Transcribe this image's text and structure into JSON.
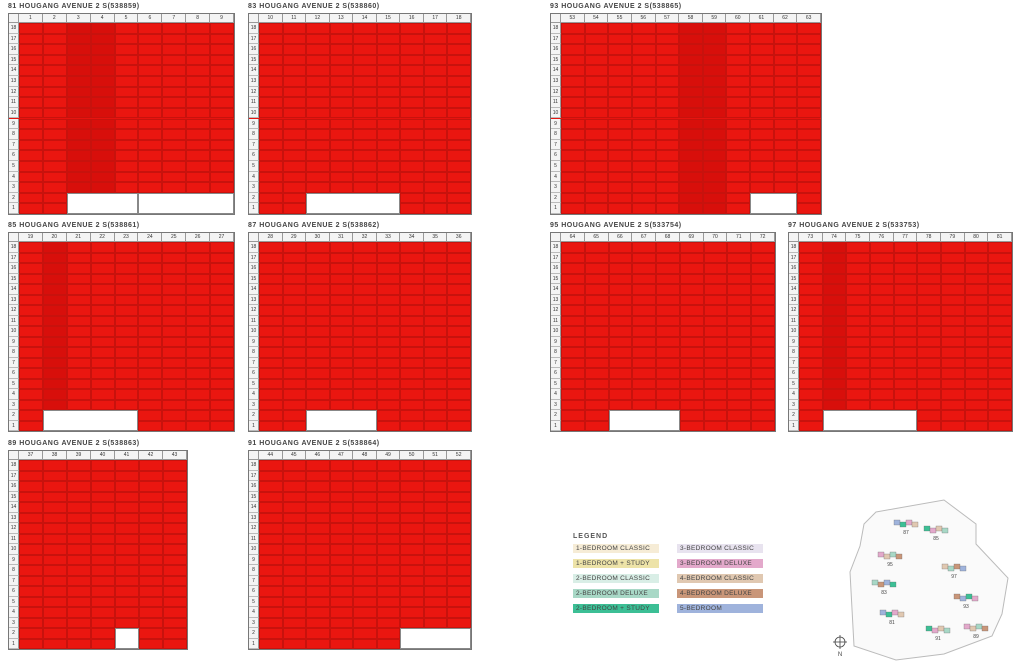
{
  "blocks": [
    {
      "title": "81 HOUGANG AVENUE 2 S(538859)",
      "units": [
        "1",
        "2",
        "3",
        "4",
        "5",
        "6",
        "7",
        "8",
        "9"
      ]
    },
    {
      "title": "83 HOUGANG AVENUE 2 S(538860)",
      "units": [
        "10",
        "11",
        "12",
        "13",
        "14",
        "15",
        "16",
        "17",
        "18"
      ]
    },
    {
      "title": "93 HOUGANG AVENUE 2 S(538865)",
      "units": [
        "53",
        "54",
        "55",
        "56",
        "57",
        "58",
        "59",
        "60",
        "61",
        "62",
        "63"
      ]
    },
    {
      "title": "85 HOUGANG AVENUE 2 S(538861)",
      "units": [
        "19",
        "20",
        "21",
        "22",
        "23",
        "24",
        "25",
        "26",
        "27"
      ]
    },
    {
      "title": "87 HOUGANG AVENUE 2 S(538862)",
      "units": [
        "28",
        "29",
        "30",
        "31",
        "32",
        "33",
        "34",
        "35",
        "36"
      ]
    },
    {
      "title": "95 HOUGANG AVENUE 2 S(533754)",
      "units": [
        "64",
        "65",
        "66",
        "67",
        "68",
        "69",
        "70",
        "71",
        "72"
      ]
    },
    {
      "title": "97 HOUGANG AVENUE 2 S(533753)",
      "units": [
        "73",
        "74",
        "75",
        "76",
        "77",
        "78",
        "79",
        "80",
        "81"
      ]
    },
    {
      "title": "89 HOUGANG AVENUE 2 S(538863)",
      "units": [
        "37",
        "38",
        "39",
        "40",
        "41",
        "42",
        "43"
      ]
    },
    {
      "title": "91 HOUGANG AVENUE 2 S(538864)",
      "units": [
        "44",
        "45",
        "46",
        "47",
        "48",
        "49",
        "50",
        "51",
        "52"
      ]
    }
  ],
  "floors": [
    "18",
    "17",
    "16",
    "15",
    "14",
    "13",
    "12",
    "11",
    "10",
    "9",
    "8",
    "7",
    "6",
    "5",
    "4",
    "3",
    "2",
    "1"
  ],
  "legend": {
    "title": "LEGEND",
    "items": [
      {
        "label": "1-BEDROOM CLASSIC",
        "color": "#f6ecd6"
      },
      {
        "label": "1-BEDROOM + STUDY",
        "color": "#ede3a8"
      },
      {
        "label": "2-BEDROOM CLASSIC",
        "color": "#d9eee6"
      },
      {
        "label": "2-BEDROOM DELUXE",
        "color": "#a8d8c6"
      },
      {
        "label": "2-BEDROOM + STUDY",
        "color": "#3cbf95"
      },
      {
        "label": "3-BEDROOM CLASSIC",
        "color": "#e8e3ef"
      },
      {
        "label": "3-BEDROOM DELUXE",
        "color": "#e3a9cb"
      },
      {
        "label": "4-BEDROOM CLASSIC",
        "color": "#e0c8b1"
      },
      {
        "label": "4-BEDROOM DELUXE",
        "color": "#c99679"
      },
      {
        "label": "5-BEDROOM",
        "color": "#9fb3dc"
      }
    ]
  },
  "site_labels": [
    "87",
    "85",
    "95",
    "97",
    "83",
    "93",
    "81",
    "91",
    "89"
  ],
  "compass_label": "N"
}
